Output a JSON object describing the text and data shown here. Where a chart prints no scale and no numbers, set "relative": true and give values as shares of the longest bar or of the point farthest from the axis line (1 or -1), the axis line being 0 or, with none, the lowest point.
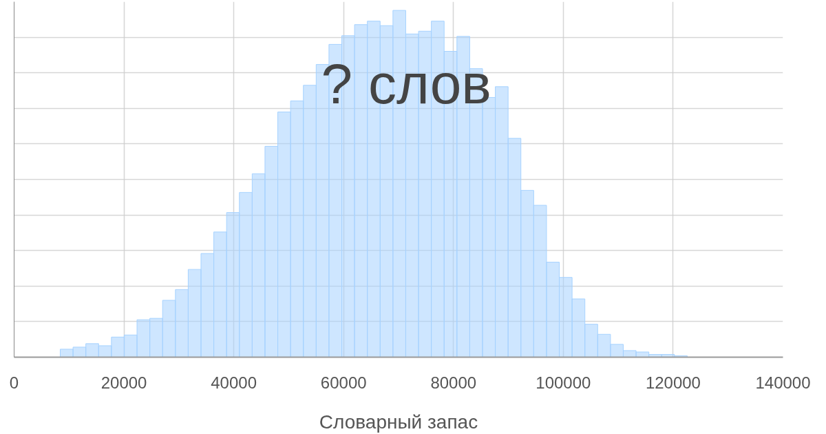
{
  "chart_data": {
    "type": "bar",
    "title": "? слов",
    "xlabel": "Словарный запас",
    "relative": true,
    "x": [
      9565,
      11895,
      14225,
      16555,
      18885,
      21215,
      23545,
      25875,
      28205,
      30535,
      32865,
      35195,
      37525,
      39855,
      42185,
      44515,
      46845,
      49175,
      51505,
      53835,
      56165,
      58495,
      60825,
      63155,
      65485,
      67815,
      70145,
      72475,
      74805,
      77135,
      79465,
      81795,
      84125,
      86455,
      88785,
      91115,
      93445,
      95775,
      98105,
      100435,
      102765,
      105095,
      107425,
      109755,
      112085,
      114415,
      116745,
      119075,
      121405
    ],
    "values": [
      0.023,
      0.029,
      0.039,
      0.033,
      0.058,
      0.064,
      0.108,
      0.112,
      0.164,
      0.195,
      0.253,
      0.299,
      0.361,
      0.417,
      0.475,
      0.529,
      0.608,
      0.707,
      0.739,
      0.784,
      0.844,
      0.902,
      0.927,
      0.959,
      0.969,
      0.956,
      1,
      0.932,
      0.94,
      0.969,
      0.882,
      0.925,
      0.832,
      0.749,
      0.78,
      0.631,
      0.481,
      0.438,
      0.274,
      0.23,
      0.168,
      0.095,
      0.066,
      0.037,
      0.019,
      0.015,
      0.008,
      0.008,
      0.004
    ],
    "color": "#a6d2ff",
    "xlim": [
      0,
      140000
    ],
    "xticks": [
      0,
      20000,
      40000,
      60000,
      80000,
      100000,
      120000,
      140000
    ],
    "grid": true,
    "tick_labels": "x"
  }
}
